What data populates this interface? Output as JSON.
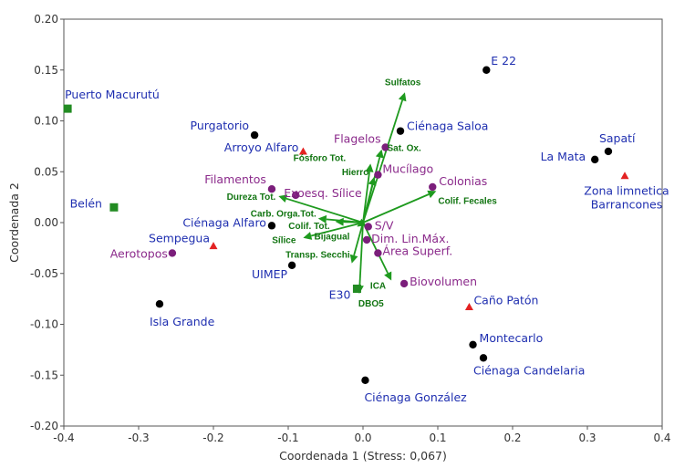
{
  "chart_data": {
    "type": "scatter",
    "title": "",
    "xlabel": "Coordenada 1 (Stress: 0,067)",
    "ylabel": "Coordenada 2",
    "xlim": [
      -0.4,
      0.4
    ],
    "ylim": [
      -0.2,
      0.2
    ],
    "x_ticks": [
      "-0.4",
      "-0.3",
      "-0.2",
      "-0.1",
      "0.0",
      "0.1",
      "0.2",
      "0.3",
      "0.4"
    ],
    "y_ticks": [
      "-0.20",
      "-0.15",
      "-0.10",
      "-0.05",
      "0.00",
      "0.05",
      "0.10",
      "0.15",
      "0.20"
    ],
    "grid": false,
    "colors": {
      "black_point": "#000000",
      "green_square": "#228B22",
      "red_triangle": "#e32222",
      "purple_point": "#7b1e7b",
      "site_label": "#1f2fb0",
      "purple_label": "#8b2a8b",
      "vector": "#1e9a1e",
      "vector_label": "#127512"
    },
    "series": [
      {
        "name": "Black points",
        "marker": "circle",
        "color": "#000000",
        "points": [
          {
            "label": "E 22",
            "x": 0.165,
            "y": 0.15
          },
          {
            "label": "Ciénaga Saloa",
            "x": 0.05,
            "y": 0.09
          },
          {
            "label": "Purgatorio",
            "x": -0.145,
            "y": 0.086
          },
          {
            "label": "Sapatí",
            "x": 0.328,
            "y": 0.07
          },
          {
            "label": "La Mata",
            "x": 0.31,
            "y": 0.062
          },
          {
            "label": "Ciénaga Alfaro",
            "x": -0.122,
            "y": -0.003
          },
          {
            "label": "UIMEP",
            "x": -0.095,
            "y": -0.042
          },
          {
            "label": "Isla Grande",
            "x": -0.272,
            "y": -0.08
          },
          {
            "label": "Montecarlo",
            "x": 0.147,
            "y": -0.12
          },
          {
            "label": "Ciénaga Candelaria",
            "x": 0.161,
            "y": -0.133
          },
          {
            "label": "Ciénaga González",
            "x": 0.003,
            "y": -0.155
          }
        ]
      },
      {
        "name": "Green squares",
        "marker": "square",
        "color": "#228B22",
        "points": [
          {
            "label": "Puerto Macurutú",
            "x": -0.395,
            "y": 0.112
          },
          {
            "label": "Belén",
            "x": -0.333,
            "y": 0.015
          },
          {
            "label": "E30",
            "x": -0.008,
            "y": -0.065
          }
        ]
      },
      {
        "name": "Red triangles",
        "marker": "triangle",
        "color": "#e32222",
        "points": [
          {
            "label": "Arroyo Alfaro",
            "x": -0.08,
            "y": 0.07
          },
          {
            "label": "Zona limnetica Barrancones",
            "x": 0.35,
            "y": 0.046
          },
          {
            "label": "Sempegua",
            "x": -0.2,
            "y": -0.023
          },
          {
            "label": "Caño Patón",
            "x": 0.142,
            "y": -0.083
          }
        ]
      },
      {
        "name": "Purple points",
        "marker": "circle",
        "color": "#7b1e7b",
        "points": [
          {
            "label": "Flagelos",
            "x": 0.03,
            "y": 0.074
          },
          {
            "label": "Mucílago",
            "x": 0.02,
            "y": 0.047
          },
          {
            "label": "Colonias",
            "x": 0.093,
            "y": 0.035
          },
          {
            "label": "Filamentos",
            "x": -0.122,
            "y": 0.033
          },
          {
            "label": "Exoesq. Sílice",
            "x": -0.09,
            "y": 0.027
          },
          {
            "label": "S/V",
            "x": 0.007,
            "y": -0.004
          },
          {
            "label": "Dim. Lin.Máx.",
            "x": 0.005,
            "y": -0.017
          },
          {
            "label": "Área Superf.",
            "x": 0.02,
            "y": -0.03
          },
          {
            "label": "Aerotopos",
            "x": -0.255,
            "y": -0.03
          },
          {
            "label": "Biovolumen",
            "x": 0.055,
            "y": -0.06
          }
        ]
      }
    ],
    "vectors": [
      {
        "label": "Sulfatos",
        "x": 0.056,
        "y": 0.128
      },
      {
        "label": "Sat. Ox.",
        "x": 0.025,
        "y": 0.072
      },
      {
        "label": "Fósforo Tot.",
        "x": 0.01,
        "y": 0.058
      },
      {
        "label": "Hierro",
        "x": 0.015,
        "y": 0.045
      },
      {
        "label": "Colif. Fecales",
        "x": 0.098,
        "y": 0.031
      },
      {
        "label": "Dureza Tot.",
        "x": -0.113,
        "y": 0.026
      },
      {
        "label": "Carb. Orga.Tot.",
        "x": -0.06,
        "y": 0.004
      },
      {
        "label": "Colif. Tot.",
        "x": -0.037,
        "y": 0.001
      },
      {
        "label": "Bijagual",
        "x": -0.008,
        "y": -0.004
      },
      {
        "label": "Sílice",
        "x": -0.08,
        "y": -0.015
      },
      {
        "label": "Transp. Secchi",
        "x": -0.015,
        "y": -0.04
      },
      {
        "label": "ICA",
        "x": 0.038,
        "y": -0.057
      },
      {
        "label": "DBO5",
        "x": -0.005,
        "y": -0.07
      }
    ]
  }
}
